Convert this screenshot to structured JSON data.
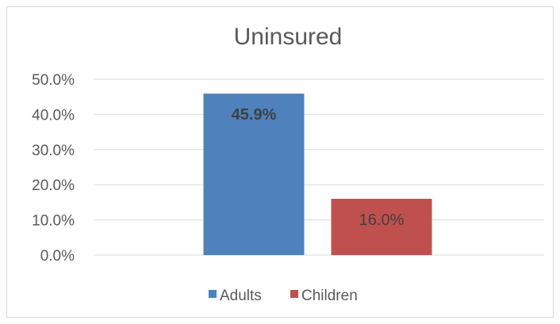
{
  "chart_data": {
    "type": "bar",
    "title": "Uninsured",
    "categories": [
      "Adults",
      "Children"
    ],
    "values": [
      45.9,
      16.0
    ],
    "data_labels": [
      "45.9%",
      "16.0%"
    ],
    "colors": [
      "#4f81bd",
      "#c0504d"
    ],
    "ylim": [
      0,
      50
    ],
    "yticks": [
      0,
      10,
      20,
      30,
      40,
      50
    ],
    "ytick_labels": [
      "0.0%",
      "10.0%",
      "20.0%",
      "30.0%",
      "40.0%",
      "50.0%"
    ],
    "grid": true,
    "legend": {
      "position": "bottom",
      "entries": [
        "Adults",
        "Children"
      ]
    },
    "xlabel": "",
    "ylabel": ""
  }
}
